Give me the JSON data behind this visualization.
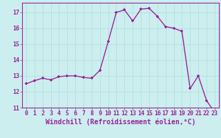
{
  "x": [
    0,
    1,
    2,
    3,
    4,
    5,
    6,
    7,
    8,
    9,
    10,
    11,
    12,
    13,
    14,
    15,
    16,
    17,
    18,
    19,
    20,
    21,
    22,
    23
  ],
  "y": [
    12.5,
    12.7,
    12.85,
    12.75,
    12.95,
    13.0,
    13.0,
    12.9,
    12.85,
    13.35,
    15.15,
    17.0,
    17.15,
    16.45,
    17.2,
    17.25,
    16.75,
    16.1,
    16.0,
    15.8,
    12.2,
    13.0,
    11.45,
    10.7
  ],
  "line_color": "#992299",
  "marker": "+",
  "markersize": 3.5,
  "markeredgewidth": 1.2,
  "linewidth": 1.0,
  "linestyle": "solid",
  "xlabel": "Windchill (Refroidissement éolien,°C)",
  "xlabel_fontsize": 7.0,
  "bg_color": "#cceeee",
  "grid_color": "#aadddd",
  "ylim": [
    11,
    17.6
  ],
  "xlim": [
    -0.5,
    23.5
  ],
  "yticks": [
    11,
    12,
    13,
    14,
    15,
    16,
    17
  ],
  "xticks": [
    0,
    1,
    2,
    3,
    4,
    5,
    6,
    7,
    8,
    9,
    10,
    11,
    12,
    13,
    14,
    15,
    16,
    17,
    18,
    19,
    20,
    21,
    22,
    23
  ],
  "tick_fontsize": 6.0,
  "tick_color": "#992299",
  "frame_color": "#992299"
}
